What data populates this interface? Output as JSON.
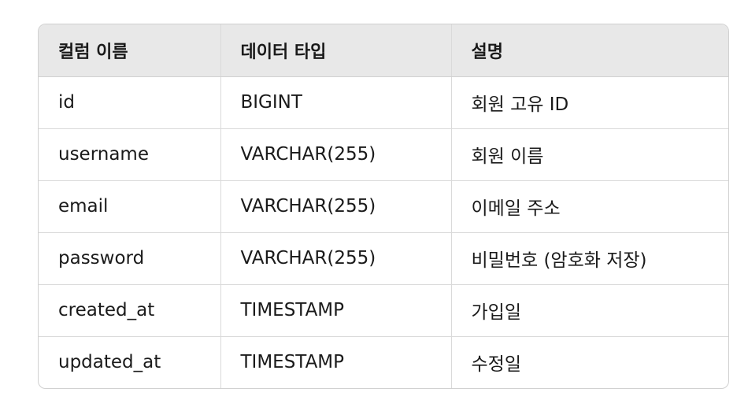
{
  "table": {
    "headers": [
      "컬럼 이름",
      "데이터 타입",
      "설명"
    ],
    "rows": [
      [
        "id",
        "BIGINT",
        "회원 고유 ID"
      ],
      [
        "username",
        "VARCHAR(255)",
        "회원 이름"
      ],
      [
        "email",
        "VARCHAR(255)",
        "이메일 주소"
      ],
      [
        "password",
        "VARCHAR(255)",
        "비밀번호 (암호화 저장)"
      ],
      [
        "created_at",
        "TIMESTAMP",
        "가입일"
      ],
      [
        "updated_at",
        "TIMESTAMP",
        "수정일"
      ]
    ]
  }
}
